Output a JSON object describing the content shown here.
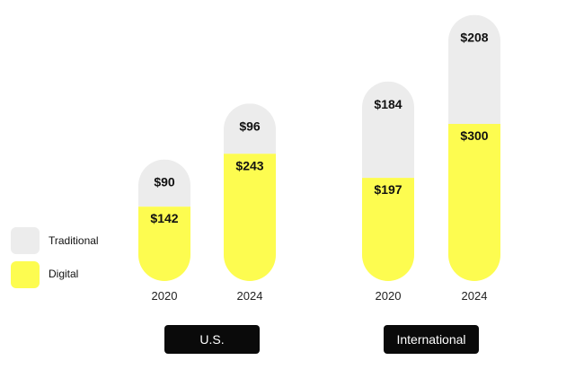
{
  "colors": {
    "traditional": "#ececec",
    "digital": "#fdfc50"
  },
  "legend": [
    {
      "label": "Traditional",
      "color": "#ececec"
    },
    {
      "label": "Digital",
      "color": "#fdfc50"
    }
  ],
  "chart_data": {
    "type": "bar",
    "stacked": true,
    "title": "",
    "groups": [
      "U.S.",
      "International"
    ],
    "categories": [
      "2020",
      "2024",
      "2020",
      "2024"
    ],
    "series": [
      {
        "name": "Digital",
        "values": [
          142,
          243,
          197,
          300
        ],
        "labels": [
          "$142",
          "$243",
          "$197",
          "$300"
        ]
      },
      {
        "name": "Traditional",
        "values": [
          90,
          96,
          184,
          208
        ],
        "labels": [
          "$90",
          "$96",
          "$184",
          "$208"
        ]
      }
    ],
    "legend_position": "left"
  }
}
